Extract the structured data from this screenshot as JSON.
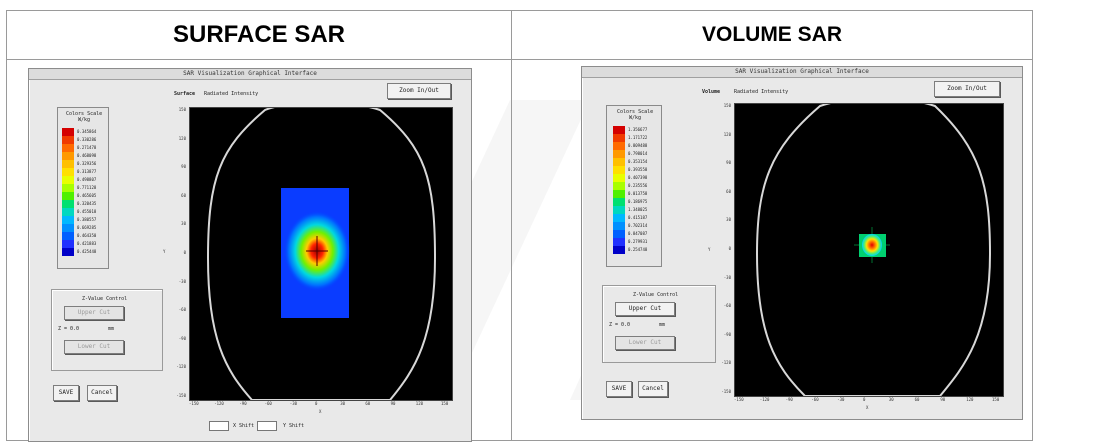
{
  "headers": {
    "left": "SURFACE SAR",
    "right": "VOLUME SAR"
  },
  "left_window": {
    "title": "SAR Visualization Graphical Interface",
    "view_mode": "Surface",
    "view_label": "Radiated Intensity",
    "zoom_button": "Zoom In/Out",
    "scale_title": "Colors Scale\nW/kg",
    "scale_values": [
      "0.345864",
      "0.330286",
      "0.271478",
      "0.468098",
      "0.329356",
      "0.313877",
      "0.498807",
      "0.771128",
      "0.465605",
      "0.320435",
      "0.455018",
      "0.380557",
      "0.669285",
      "0.464350",
      "0.421883",
      "0.425448"
    ],
    "zview_label": "Z-Value Control",
    "zview_button": "Upper Cut",
    "z_value": "Z = 0.0",
    "z_unit": "mm",
    "lower_button": "Lower Cut",
    "save_button": "SAVE",
    "cancel_button": "Cancel",
    "x_shift_label": "X Shift",
    "y_shift_label": "Y Shift"
  },
  "right_window": {
    "title": "SAR Visualization Graphical Interface",
    "view_mode": "Volume",
    "view_label": "Radiated Intensity",
    "zoom_button": "Zoom In/Out",
    "scale_title": "Colors Scale\nW/kg",
    "scale_values": [
      "1.356677",
      "1.171722",
      "0.809488",
      "0.798014",
      "0.353154",
      "0.393558",
      "0.407398",
      "0.235556",
      "0.013758",
      "0.186975",
      "1.348025",
      "0.415187",
      "0.702314",
      "0.847087",
      "0.279931",
      "0.254748"
    ],
    "zview_label": "Z-Value Control",
    "zview_button": "Upper Cut",
    "z_value": "Z = 0.0",
    "z_unit": "mm",
    "lower_button": "Lower Cut",
    "save_button": "SAVE",
    "cancel_button": "Cancel"
  },
  "plot_y_ticks": [
    "150",
    "120",
    "90",
    "60",
    "30",
    "0",
    "-30",
    "-60",
    "-90",
    "-120",
    "-150"
  ],
  "plot_x_ticks": [
    "-150",
    "-120",
    "-90",
    "-60",
    "-30",
    "0",
    "30",
    "60",
    "90",
    "120",
    "150"
  ],
  "axis_x_label": "X",
  "axis_y_label": "Y",
  "colors": {
    "plot_bg": "#000000",
    "outline": "#d8d8d8",
    "scale": [
      "#d40000",
      "#f03a00",
      "#ff6a00",
      "#ff9900",
      "#ffc000",
      "#ffe000",
      "#e8ff00",
      "#a8ff00",
      "#50f000",
      "#00e070",
      "#00d8c0",
      "#00b8ff",
      "#0090ff",
      "#0060ff",
      "#2030ff",
      "#0000c8"
    ]
  }
}
